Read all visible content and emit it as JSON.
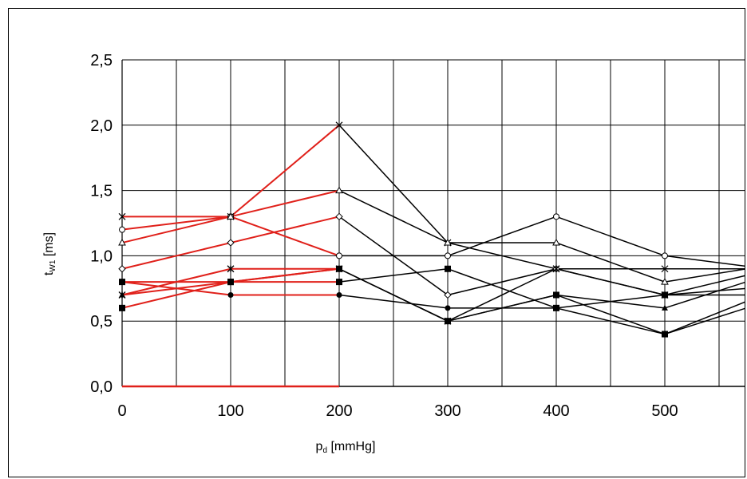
{
  "chart_data": {
    "type": "line",
    "xlabel_main": "p",
    "xlabel_sub": "d",
    "xlabel_unit": " [mmHg]",
    "ylabel_main": "t",
    "ylabel_sub": "W1",
    "ylabel_unit": " [ms]",
    "x_ticks": [
      0,
      100,
      200,
      300,
      400,
      500
    ],
    "x_tick_labels": [
      "0",
      "100",
      "200",
      "300",
      "400",
      "500"
    ],
    "y_ticks": [
      0,
      0.5,
      1.0,
      1.5,
      2.0,
      2.5
    ],
    "y_tick_labels": [
      "0,0",
      "0,5",
      "1,0",
      "1,5",
      "2,0",
      "2,5"
    ],
    "xlim": [
      0,
      575
    ],
    "ylim": [
      0,
      2.5
    ],
    "grid": true,
    "x_grid_step": 50,
    "colors": {
      "red": "#e0201a",
      "black": "#000000"
    },
    "series": [
      {
        "marker": "x",
        "x": [
          0,
          100,
          200,
          300,
          400,
          500,
          575
        ],
        "y": [
          1.3,
          1.3,
          2.0,
          1.1,
          0.9,
          0.9,
          0.9
        ]
      },
      {
        "marker": "circle",
        "x": [
          0,
          100,
          200,
          300,
          400,
          500,
          575
        ],
        "y": [
          1.2,
          1.3,
          1.0,
          1.0,
          1.3,
          1.0,
          0.92
        ]
      },
      {
        "marker": "triangle",
        "x": [
          0,
          100,
          200,
          300,
          400,
          500,
          575
        ],
        "y": [
          1.1,
          1.3,
          1.5,
          1.1,
          1.1,
          0.8,
          0.9
        ]
      },
      {
        "marker": "diamond",
        "x": [
          0,
          100,
          200,
          300,
          400,
          500,
          575
        ],
        "y": [
          0.9,
          1.1,
          1.3,
          0.7,
          0.9,
          0.7,
          0.85
        ]
      },
      {
        "marker": "asterisk",
        "x": [
          0,
          100,
          200,
          300,
          400,
          500,
          575
        ],
        "y": [
          0.7,
          0.9,
          0.9,
          0.5,
          0.9,
          0.7,
          0.75
        ]
      },
      {
        "marker": "square",
        "x": [
          0,
          100,
          200,
          300,
          400,
          500,
          575
        ],
        "y": [
          0.6,
          0.8,
          0.8,
          0.9,
          0.6,
          0.7,
          0.7
        ]
      },
      {
        "marker": "dot",
        "x": [
          0,
          100,
          200,
          300,
          400,
          500,
          575
        ],
        "y": [
          0.8,
          0.7,
          0.7,
          0.6,
          0.6,
          0.4,
          0.6
        ]
      },
      {
        "marker": "triangle-filled",
        "x": [
          0,
          100,
          200,
          300,
          400,
          500,
          575
        ],
        "y": [
          0.7,
          0.8,
          0.9,
          0.5,
          0.7,
          0.6,
          0.8
        ]
      },
      {
        "marker": "square-filled",
        "x": [
          0,
          100,
          200,
          300,
          400,
          500,
          575
        ],
        "y": [
          0.8,
          0.8,
          0.9,
          0.5,
          0.7,
          0.4,
          0.65
        ]
      }
    ],
    "red_segment_until_x": 200,
    "zero_line_red_until_x": 200
  }
}
